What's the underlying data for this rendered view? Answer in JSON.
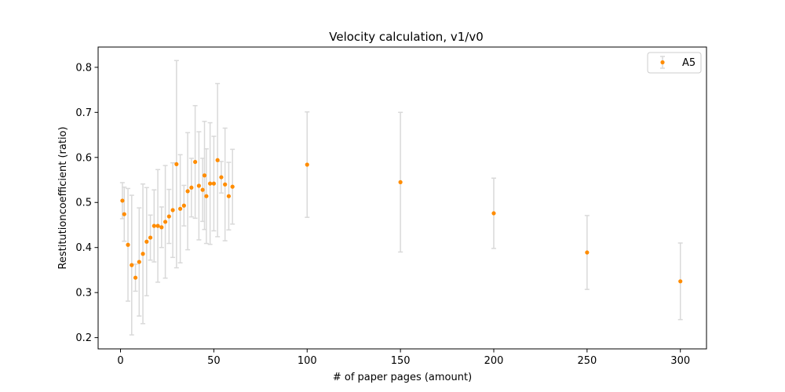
{
  "chart_data": {
    "type": "scatter",
    "title": "Velocity calculation, v1/v0",
    "xlabel": "# of paper pages (amount)",
    "ylabel": "Restitutioncoefficient (ratio)",
    "xlim": [
      -12,
      314
    ],
    "ylim": [
      0.175,
      0.845
    ],
    "xticks": [
      0,
      50,
      100,
      150,
      200,
      250,
      300
    ],
    "yticks": [
      0.2,
      0.3,
      0.4,
      0.5,
      0.6,
      0.7,
      0.8
    ],
    "xtick_labels": [
      "0",
      "50",
      "100",
      "150",
      "200",
      "250",
      "300"
    ],
    "ytick_labels": [
      "0.2",
      "0.3",
      "0.4",
      "0.5",
      "0.6",
      "0.7",
      "0.8"
    ],
    "grid": false,
    "legend": {
      "position": "top-right"
    },
    "series": [
      {
        "name": "A5",
        "color": "#ff8c00",
        "errorbar_color": "#d9d9d9",
        "points": [
          {
            "x": 1,
            "y": 0.504,
            "err": 0.04
          },
          {
            "x": 2,
            "y": 0.474,
            "err": 0.06
          },
          {
            "x": 4,
            "y": 0.406,
            "err": 0.125
          },
          {
            "x": 6,
            "y": 0.361,
            "err": 0.155
          },
          {
            "x": 8,
            "y": 0.333,
            "err": 0.03
          },
          {
            "x": 10,
            "y": 0.368,
            "err": 0.12
          },
          {
            "x": 12,
            "y": 0.386,
            "err": 0.155
          },
          {
            "x": 14,
            "y": 0.413,
            "err": 0.12
          },
          {
            "x": 16,
            "y": 0.422,
            "err": 0.05
          },
          {
            "x": 18,
            "y": 0.448,
            "err": 0.08
          },
          {
            "x": 20,
            "y": 0.448,
            "err": 0.125
          },
          {
            "x": 22,
            "y": 0.445,
            "err": 0.045
          },
          {
            "x": 24,
            "y": 0.457,
            "err": 0.125
          },
          {
            "x": 26,
            "y": 0.469,
            "err": 0.06
          },
          {
            "x": 28,
            "y": 0.483,
            "err": 0.105
          },
          {
            "x": 30,
            "y": 0.585,
            "err": 0.23
          },
          {
            "x": 32,
            "y": 0.486,
            "err": 0.12
          },
          {
            "x": 34,
            "y": 0.493,
            "err": 0.045
          },
          {
            "x": 36,
            "y": 0.525,
            "err": 0.13
          },
          {
            "x": 38,
            "y": 0.533,
            "err": 0.065
          },
          {
            "x": 40,
            "y": 0.59,
            "err": 0.125
          },
          {
            "x": 42,
            "y": 0.537,
            "err": 0.12
          },
          {
            "x": 44,
            "y": 0.528,
            "err": 0.07
          },
          {
            "x": 45,
            "y": 0.56,
            "err": 0.12
          },
          {
            "x": 46,
            "y": 0.514,
            "err": 0.105
          },
          {
            "x": 48,
            "y": 0.542,
            "err": 0.135
          },
          {
            "x": 50,
            "y": 0.542,
            "err": 0.105
          },
          {
            "x": 52,
            "y": 0.594,
            "err": 0.17
          },
          {
            "x": 54,
            "y": 0.556,
            "err": 0.035
          },
          {
            "x": 56,
            "y": 0.54,
            "err": 0.125
          },
          {
            "x": 58,
            "y": 0.514,
            "err": 0.075
          },
          {
            "x": 60,
            "y": 0.535,
            "err": 0.083
          },
          {
            "x": 100,
            "y": 0.584,
            "err": 0.117
          },
          {
            "x": 150,
            "y": 0.545,
            "err": 0.155
          },
          {
            "x": 200,
            "y": 0.476,
            "err": 0.078
          },
          {
            "x": 250,
            "y": 0.389,
            "err": 0.082
          },
          {
            "x": 300,
            "y": 0.325,
            "err": 0.085
          }
        ]
      }
    ]
  }
}
